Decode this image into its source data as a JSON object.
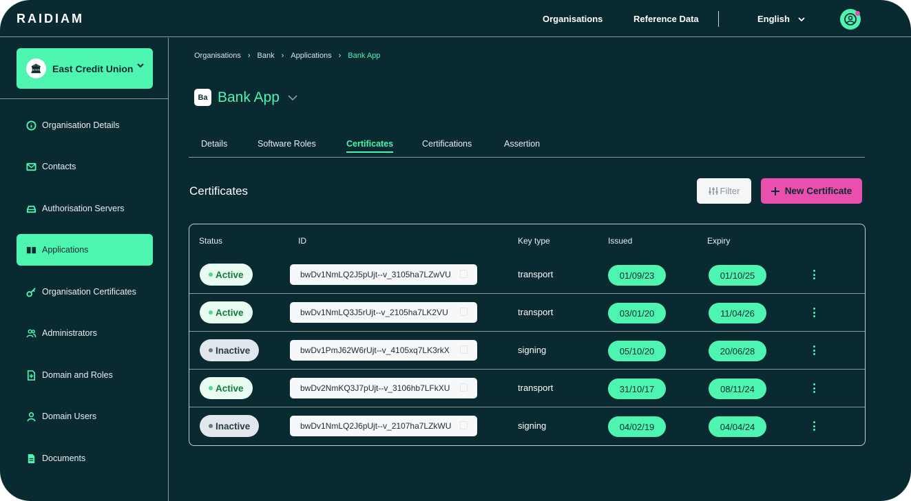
{
  "header": {
    "logo": "RAIDIAM",
    "nav": [
      "Organisations",
      "Reference Data"
    ],
    "language": "English",
    "avatar_icon": "user-circle-icon"
  },
  "sidebar": {
    "org_name": "East Credit Union",
    "items": [
      {
        "label": "Organisation Details",
        "icon": "info-icon"
      },
      {
        "label": "Contacts",
        "icon": "mail-icon"
      },
      {
        "label": "Authorisation Servers",
        "icon": "server-icon"
      },
      {
        "label": "Applications",
        "icon": "book-icon",
        "active": true
      },
      {
        "label": "Organisation Certificates",
        "icon": "key-icon"
      },
      {
        "label": "Administrators",
        "icon": "users-icon"
      },
      {
        "label": "Domain and Roles",
        "icon": "file-plus-icon"
      },
      {
        "label": "Domain Users",
        "icon": "user-icon"
      },
      {
        "label": "Documents",
        "icon": "document-icon"
      }
    ]
  },
  "breadcrumb": [
    "Organisations",
    "Bank",
    "Applications",
    "Bank App"
  ],
  "app": {
    "badge": "Ba",
    "title": "Bank App"
  },
  "tabs": [
    "Details",
    "Software Roles",
    "Certificates",
    "Certifications",
    "Assertion"
  ],
  "active_tab": "Certificates",
  "section": {
    "title": "Certificates",
    "filter_label": "Filter",
    "new_label": "New Certificate"
  },
  "colors": {
    "background": "#0a2a31",
    "accent": "#4ef5b0",
    "primary_button": "#e94fae"
  },
  "table": {
    "headers": [
      "Status",
      "ID",
      "Key type",
      "Issued",
      "Expiry"
    ],
    "rows": [
      {
        "status": "Active",
        "id": "bwDv1NmLQ2J5pUjt--v_3105ha7LZwVU",
        "key_type": "transport",
        "issued": "01/09/23",
        "expiry": "01/10/25"
      },
      {
        "status": "Active",
        "id": "bwDv1NmLQ3J5rUjt--v_2105ha7LK2VU",
        "key_type": "transport",
        "issued": "03/01/20",
        "expiry": "11/04/26"
      },
      {
        "status": "Inactive",
        "id": "bwDv1PmJ62W6rUjt--v_4105xq7LK3rkX",
        "key_type": "signing",
        "issued": "05/10/20",
        "expiry": "20/06/28"
      },
      {
        "status": "Active",
        "id": "bwDv2NmKQ3J7pUjt--v_3106hb7LFkXU",
        "key_type": "transport",
        "issued": "31/10/17",
        "expiry": "08/11/24"
      },
      {
        "status": "Inactive",
        "id": "bwDv1NmLQ2J6pUjt--v_2107ha7LZkWU",
        "key_type": "signing",
        "issued": "04/02/19",
        "expiry": "04/04/24"
      }
    ]
  }
}
